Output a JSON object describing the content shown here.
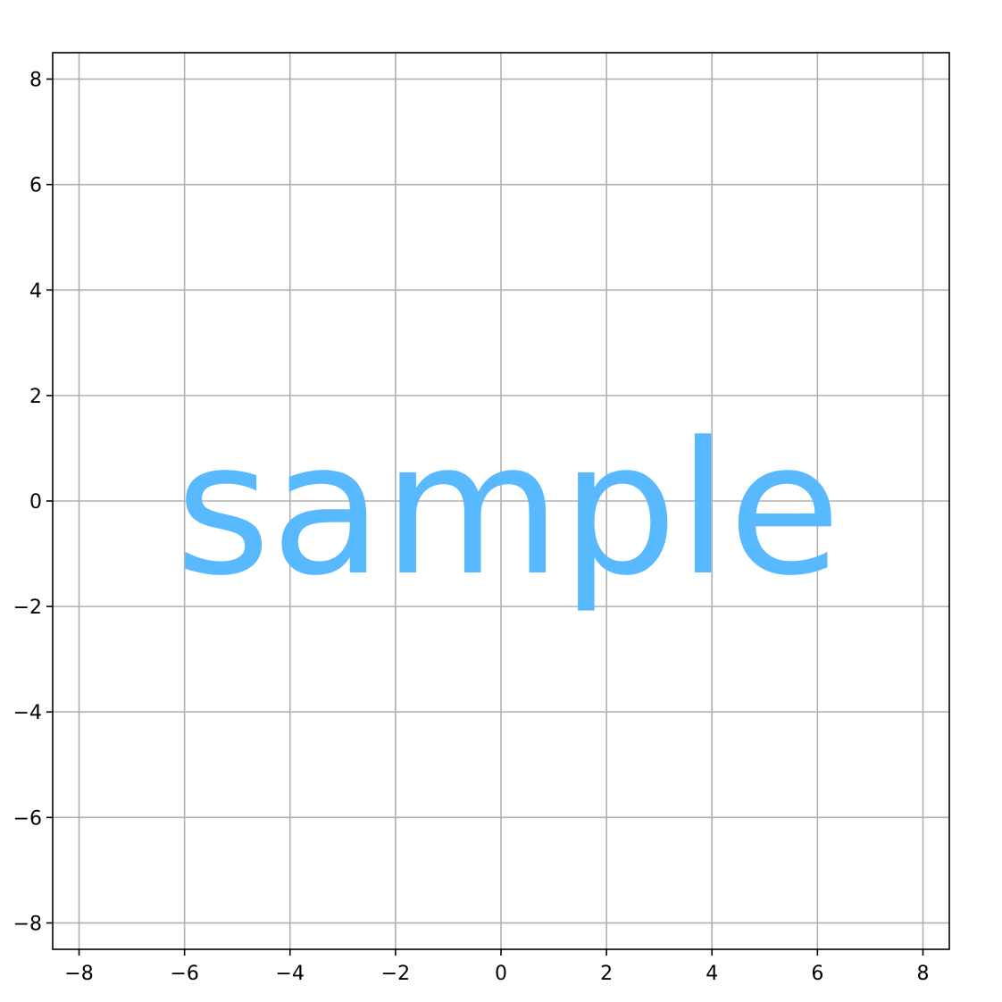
{
  "chart_data": {
    "type": "scatter",
    "xlim": [
      -8.5,
      8.5
    ],
    "ylim": [
      -8.5,
      8.5
    ],
    "x_ticks": [
      -8,
      -6,
      -4,
      -2,
      0,
      2,
      4,
      6,
      8
    ],
    "y_ticks": [
      -8,
      -6,
      -4,
      -2,
      0,
      2,
      4,
      6,
      8
    ],
    "x_tick_labels": [
      "−8",
      "−6",
      "−4",
      "−2",
      "0",
      "2",
      "4",
      "6",
      "8"
    ],
    "y_tick_labels": [
      "−8",
      "−6",
      "−4",
      "−2",
      "0",
      "2",
      "4",
      "6",
      "8"
    ],
    "grid": true,
    "annotation": {
      "text": "sample",
      "x": 0,
      "y": 0,
      "color": "#56b8ff"
    },
    "colors": {
      "grid": "#b0b0b0",
      "axes": "#000000",
      "annotation": "#56b8ff"
    }
  }
}
